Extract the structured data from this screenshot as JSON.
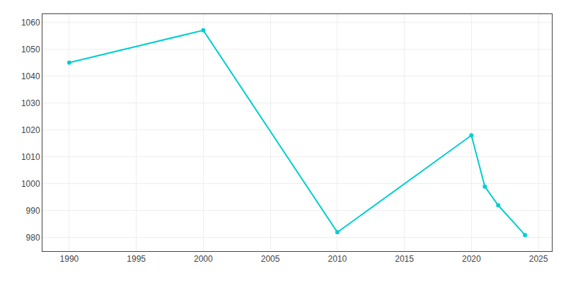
{
  "chart_data": {
    "type": "line",
    "x": [
      1990,
      2000,
      2010,
      2020,
      2021,
      2022,
      2024
    ],
    "values": [
      1045,
      1057,
      982,
      1018,
      999,
      992,
      981
    ],
    "color": "#00CED1",
    "marker": "circle",
    "xlim": [
      1988,
      2026
    ],
    "xticks": [
      1990,
      1995,
      2000,
      2005,
      2010,
      2015,
      2020,
      2025
    ],
    "ylim": [
      975,
      1063
    ],
    "yticks": [
      980,
      990,
      1000,
      1010,
      1020,
      1030,
      1040,
      1050,
      1060
    ],
    "grid": true
  }
}
